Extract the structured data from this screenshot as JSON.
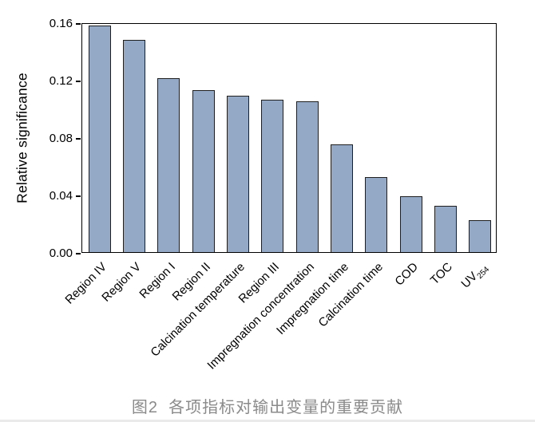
{
  "figure": {
    "caption": "图2  各项指标对输出变量的重要贡献"
  },
  "chart_data": {
    "type": "bar",
    "title": "",
    "xlabel": "",
    "ylabel": "Relative significance",
    "ylim": [
      0,
      0.16
    ],
    "ytick_labels": [
      "0.00",
      "0.04",
      "0.08",
      "0.12",
      "0.16"
    ],
    "grid": false,
    "legend": "none",
    "categories": [
      "Region IV",
      "Region V",
      "Region I",
      "Region II",
      "Calcination temperature",
      "Region III",
      "Impregnation concentration",
      "Impregnation time",
      "Calcination time",
      "COD",
      "TOC",
      "UV254"
    ],
    "values": [
      0.158,
      0.148,
      0.121,
      0.113,
      0.109,
      0.106,
      0.105,
      0.075,
      0.052,
      0.039,
      0.032,
      0.022
    ],
    "subscripts": {
      "UV254": {
        "base": "UV",
        "sub": "254"
      }
    },
    "bar_fill_color": "#94a9c5",
    "bar_border_color": "#1f1f1f",
    "axis_color": "#000000",
    "caption_color": "#8a8a8a",
    "x_tick_label_rotation_deg": 45
  }
}
